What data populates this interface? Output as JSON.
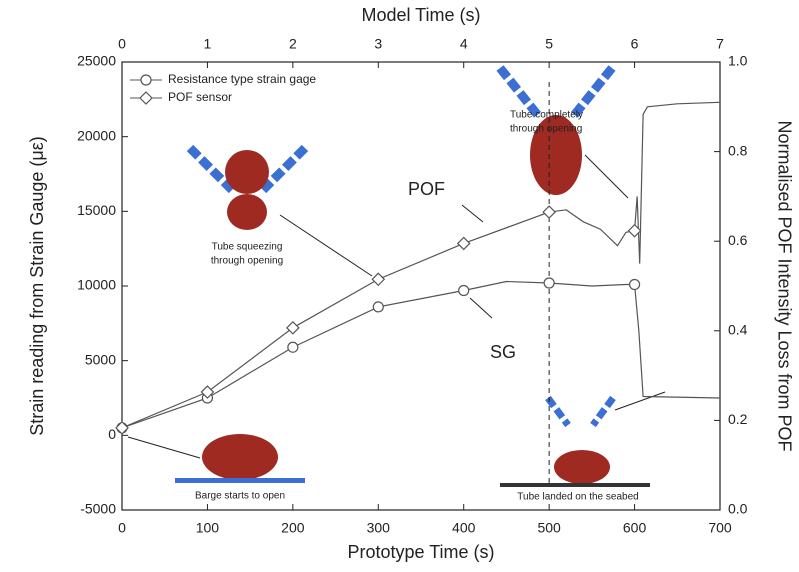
{
  "chart_data": {
    "type": "line",
    "xlabel": "Prototype Time (s)",
    "x2label": "Model Time (s)",
    "ylabel": "Strain reading from Strain Gauge (με)",
    "y2label": "Normalised POF Intensity Loss from POF",
    "xlim": [
      0,
      700
    ],
    "xticks": [
      0,
      100,
      200,
      300,
      400,
      500,
      600,
      700
    ],
    "x2lim": [
      0,
      7
    ],
    "x2ticks": [
      0,
      1,
      2,
      3,
      4,
      5,
      6,
      7
    ],
    "ylim": [
      -5000,
      25000
    ],
    "yticks": [
      -5000,
      0,
      5000,
      10000,
      15000,
      20000,
      25000
    ],
    "y2lim": [
      0,
      1
    ],
    "y2ticks": [
      {
        "value": 0,
        "label": "0.0"
      },
      0.2,
      0.4,
      0.6,
      0.8,
      {
        "value": 1,
        "label": "1.0"
      }
    ],
    "vline_x": 500,
    "series": [
      {
        "name": "Resistance type strain gage",
        "color": "#555555",
        "marker": "circle",
        "x": [
          0,
          100,
          200,
          300,
          400,
          450,
          500,
          550,
          590,
          600,
          605,
          610,
          700
        ],
        "values": [
          500,
          2500,
          5900,
          8600,
          9700,
          10300,
          10200,
          10000,
          10100,
          10100,
          7000,
          2600,
          2500
        ]
      },
      {
        "name": "POF sensor",
        "color": "#555555",
        "marker": "diamond",
        "x": [
          0,
          100,
          200,
          300,
          400,
          500,
          520,
          540,
          560,
          580,
          590,
          600,
          603,
          606,
          610,
          615,
          650,
          700
        ],
        "values": [
          500,
          2900,
          7200,
          10450,
          12850,
          14950,
          15100,
          14300,
          13800,
          12700,
          13600,
          13700,
          16000,
          11500,
          21500,
          22000,
          22200,
          22300
        ]
      }
    ],
    "annotations": [
      "POF",
      "SG",
      "Tube squeezing",
      "through opening",
      "Tube completely",
      "through opening",
      "Barge starts to open",
      "Tube landed on the seabed"
    ]
  }
}
